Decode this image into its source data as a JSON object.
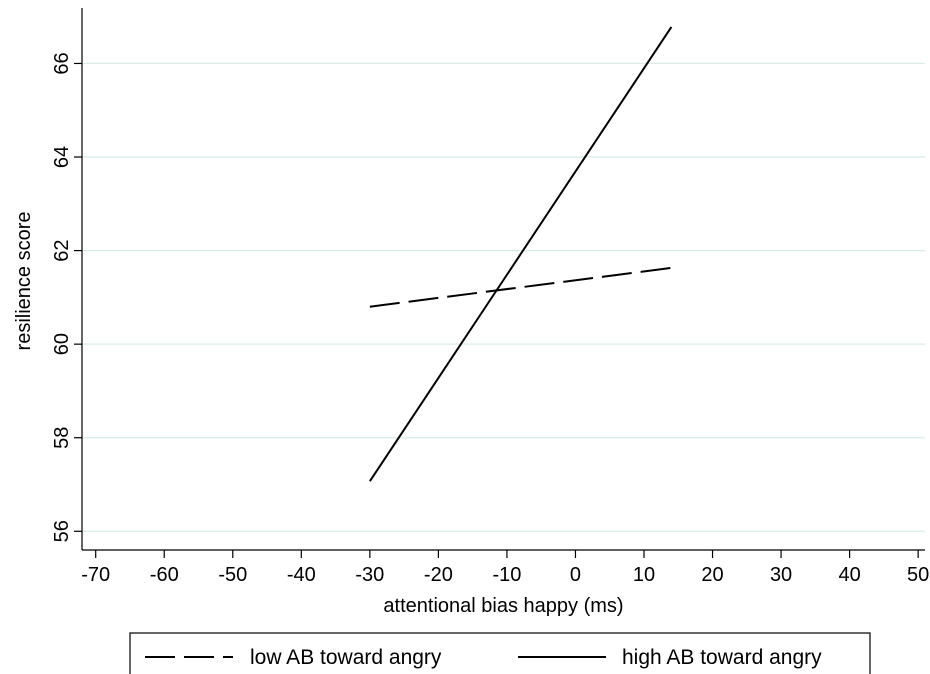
{
  "chart_data": {
    "type": "line",
    "title": "",
    "xlabel": "attentional bias happy (ms)",
    "ylabel": "resilience score",
    "xlim": [
      -72,
      51
    ],
    "ylim": [
      55.6,
      67.1
    ],
    "xticks": [
      -70,
      -60,
      -50,
      -40,
      -30,
      -20,
      -10,
      0,
      10,
      20,
      30,
      40,
      50
    ],
    "yticks": [
      56,
      58,
      60,
      62,
      64,
      66
    ],
    "grid": true,
    "legend_position": "bottom",
    "series": [
      {
        "name": "low AB toward angry",
        "style": "dashed",
        "color": "#000000",
        "x": [
          -30,
          14
        ],
        "y": [
          60.8,
          61.63
        ]
      },
      {
        "name": "high AB toward angry",
        "style": "solid",
        "color": "#000000",
        "x": [
          -30,
          14
        ],
        "y": [
          57.07,
          66.78
        ]
      }
    ]
  },
  "colors": {
    "gridline": "#d8ebe9",
    "axis": "#000000"
  }
}
